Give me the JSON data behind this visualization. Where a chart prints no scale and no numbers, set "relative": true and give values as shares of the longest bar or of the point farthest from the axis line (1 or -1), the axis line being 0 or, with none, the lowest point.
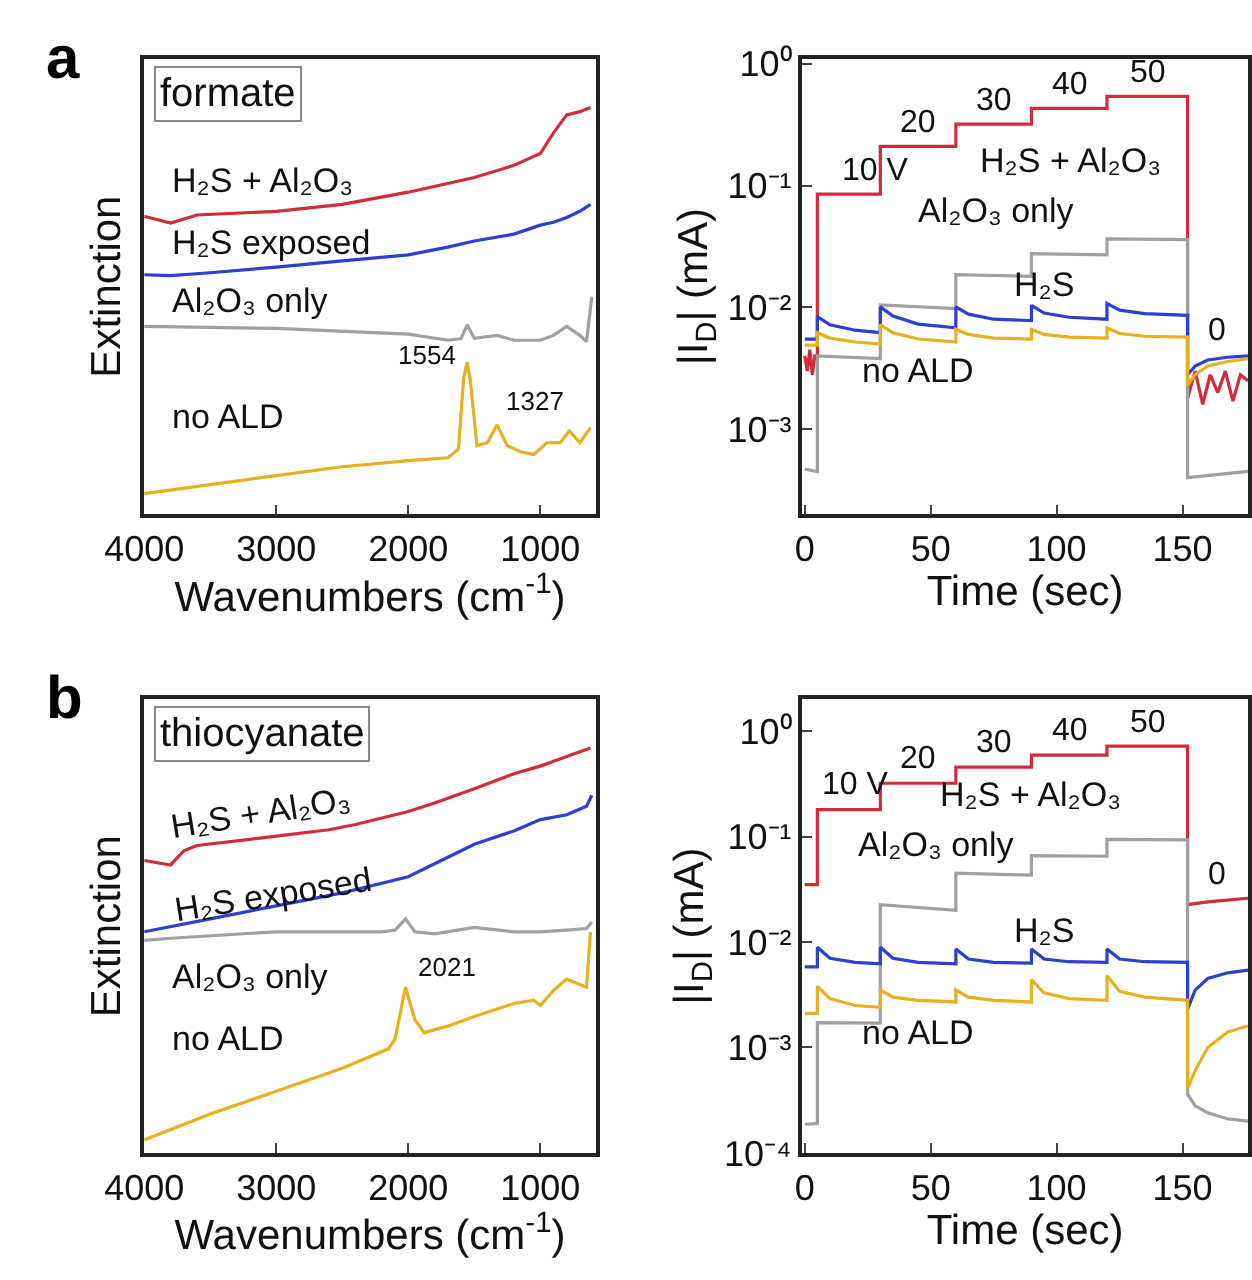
{
  "chart_data": [
    {
      "type": "line",
      "title": "formate",
      "relative": true,
      "xlabel": "Wavenumbers (cm$^{-1}$)",
      "ylabel": "Extinction",
      "xlim": [
        4000,
        580
      ],
      "xticks": [
        4000,
        3000,
        2000,
        1000
      ],
      "tick_labels": "x",
      "legend": false,
      "x": [
        4000,
        3800,
        3600,
        3000,
        2500,
        2000,
        1500,
        1200,
        1000,
        900,
        800,
        700,
        620
      ],
      "series": [
        {
          "name": "H₂S + Al₂O₃",
          "color": "#d42a3a",
          "values": [
            0.733,
            0.716,
            0.736,
            0.745,
            0.762,
            0.792,
            0.828,
            0.858,
            0.887,
            0.938,
            0.982,
            0.99,
            1.0
          ]
        },
        {
          "name": "H₂S exposed",
          "color": "#2a3fd6",
          "x": [
            4000,
            3800,
            3500,
            3000,
            2500,
            2000,
            1700,
            1500,
            1200,
            1000,
            900,
            800,
            700,
            620
          ],
          "values": [
            0.589,
            0.587,
            0.594,
            0.608,
            0.623,
            0.638,
            0.657,
            0.672,
            0.689,
            0.711,
            0.718,
            0.73,
            0.745,
            0.762
          ]
        },
        {
          "name": "Al₂O₃ only",
          "color": "#a0a0a0",
          "x": [
            4000,
            3000,
            2000,
            1700,
            1600,
            1554,
            1500,
            1327,
            1200,
            1000,
            900,
            800,
            700,
            650,
            610
          ],
          "values": [
            0.462,
            0.457,
            0.443,
            0.428,
            0.432,
            0.466,
            0.433,
            0.44,
            0.428,
            0.428,
            0.44,
            0.462,
            0.44,
            0.425,
            0.535
          ]
        },
        {
          "name": "no ALD",
          "color": "#e8b020",
          "x": [
            4000,
            3500,
            3000,
            2500,
            2000,
            1700,
            1620,
            1580,
            1554,
            1530,
            1480,
            1400,
            1327,
            1250,
            1150,
            1050,
            950,
            850,
            780,
            700,
            620
          ],
          "values": [
            0.051,
            0.073,
            0.095,
            0.117,
            0.132,
            0.139,
            0.161,
            0.337,
            0.374,
            0.33,
            0.169,
            0.176,
            0.22,
            0.169,
            0.154,
            0.147,
            0.176,
            0.176,
            0.205,
            0.176,
            0.213
          ]
        }
      ],
      "annotations": [
        "a",
        {
          "text": "1554",
          "x": 1554,
          "y": 0.374
        },
        {
          "text": "1327",
          "x": 1327,
          "y": 0.22
        }
      ]
    },
    {
      "type": "line",
      "xlabel": "Time (sec)",
      "ylabel": "|I$_{D}$| (mA)",
      "log": "y",
      "xlim": [
        -1,
        176
      ],
      "xticks": [
        0,
        50,
        100,
        150
      ],
      "ylim": [
        0.0002,
        1.1
      ],
      "yticks": [
        {
          "value": 1,
          "label": "10⁰"
        },
        {
          "value": 0.1,
          "label": "10⁻¹"
        },
        {
          "value": 0.01,
          "label": "10⁻²"
        },
        {
          "value": 0.001,
          "label": "10⁻³"
        }
      ],
      "legend": false,
      "series": [
        {
          "name": "H₂S + Al₂O₃",
          "color": "#d42a3a",
          "x": [
            0,
            1,
            2,
            3,
            4,
            5,
            5,
            30,
            30,
            60,
            60,
            90,
            90,
            120,
            120,
            152,
            152,
            155,
            158,
            161,
            164,
            167,
            170,
            173,
            176
          ],
          "values": [
            0.004,
            0.003,
            0.0045,
            0.0028,
            0.004,
            0.004,
            0.085,
            0.085,
            0.21,
            0.21,
            0.32,
            0.32,
            0.43,
            0.43,
            0.54,
            0.54,
            0.0018,
            0.003,
            0.0016,
            0.0028,
            0.002,
            0.003,
            0.0017,
            0.0028,
            0.0025
          ]
        },
        {
          "name": "Al₂O₃ only",
          "color": "#a0a0a0",
          "x": [
            0,
            5,
            5,
            30,
            30,
            60,
            60,
            90,
            90,
            120,
            120,
            152,
            152,
            176
          ],
          "values": [
            0.00047,
            0.00045,
            0.004,
            0.0038,
            0.0105,
            0.0098,
            0.0186,
            0.018,
            0.0276,
            0.027,
            0.0366,
            0.036,
            0.0004,
            0.00045
          ]
        },
        {
          "name": "H₂S",
          "color": "#2a3fd6",
          "x": [
            0,
            5,
            5,
            10,
            20,
            30,
            30,
            35,
            45,
            60,
            60,
            65,
            75,
            90,
            90,
            95,
            105,
            120,
            120,
            125,
            135,
            152,
            152,
            155,
            160,
            168,
            176
          ],
          "values": [
            0.0055,
            0.0055,
            0.0084,
            0.0072,
            0.0065,
            0.0062,
            0.0101,
            0.0085,
            0.0073,
            0.0068,
            0.0101,
            0.0088,
            0.008,
            0.0078,
            0.0104,
            0.009,
            0.0083,
            0.008,
            0.0108,
            0.0095,
            0.0089,
            0.0086,
            0.0028,
            0.0033,
            0.0037,
            0.0039,
            0.004
          ]
        },
        {
          "name": "no ALD",
          "color": "#e8b020",
          "x": [
            0,
            5,
            5,
            10,
            20,
            30,
            30,
            35,
            45,
            60,
            60,
            65,
            75,
            90,
            90,
            95,
            105,
            120,
            120,
            125,
            135,
            152,
            152,
            155,
            160,
            168,
            176
          ],
          "values": [
            0.0049,
            0.0049,
            0.0062,
            0.0056,
            0.0052,
            0.005,
            0.0072,
            0.0062,
            0.0055,
            0.0052,
            0.0066,
            0.006,
            0.0056,
            0.0055,
            0.0066,
            0.006,
            0.0057,
            0.0056,
            0.0068,
            0.0061,
            0.0058,
            0.0057,
            0.0023,
            0.0028,
            0.0033,
            0.0036,
            0.0038
          ]
        }
      ],
      "annotations": [
        {
          "text": "10 V",
          "x": 17,
          "y": 0.085
        },
        {
          "text": "20",
          "x": 45,
          "y": 0.21
        },
        {
          "text": "30",
          "x": 75,
          "y": 0.32
        },
        {
          "text": "40",
          "x": 105,
          "y": 0.43
        },
        {
          "text": "50",
          "x": 136,
          "y": 0.54
        },
        {
          "text": "0",
          "x": 164,
          "y": 0.004
        }
      ]
    },
    {
      "type": "line",
      "title": "thiocyanate",
      "relative": true,
      "xlabel": "Wavenumbers (cm$^{-1}$)",
      "ylabel": "Extinction",
      "xlim": [
        4000,
        580
      ],
      "xticks": [
        4000,
        3000,
        2000,
        1000
      ],
      "tick_labels": "x",
      "legend": false,
      "series": [
        {
          "name": "H₂S + Al₂O₃",
          "color": "#d42a3a",
          "x": [
            4000,
            3800,
            3700,
            3600,
            3000,
            2600,
            2400,
            2000,
            1800,
            1500,
            1200,
            1000,
            800,
            620
          ],
          "values": [
            0.722,
            0.711,
            0.746,
            0.759,
            0.782,
            0.798,
            0.811,
            0.843,
            0.864,
            0.899,
            0.936,
            0.955,
            0.979,
            1.0
          ]
        },
        {
          "name": "H₂S exposed",
          "color": "#2a3fd6",
          "x": [
            4000,
            3500,
            3000,
            2500,
            2000,
            1700,
            1500,
            1200,
            1000,
            800,
            650,
            610
          ],
          "values": [
            0.546,
            0.578,
            0.61,
            0.642,
            0.682,
            0.73,
            0.762,
            0.795,
            0.823,
            0.835,
            0.856,
            0.883
          ]
        },
        {
          "name": "Al₂O₃ only",
          "color": "#a0a0a0",
          "x": [
            4000,
            3800,
            3000,
            2200,
            2100,
            2021,
            1950,
            1800,
            1500,
            1200,
            1000,
            800,
            650,
            610
          ],
          "values": [
            0.525,
            0.53,
            0.546,
            0.546,
            0.55,
            0.578,
            0.546,
            0.541,
            0.557,
            0.546,
            0.546,
            0.55,
            0.554,
            0.57
          ]
        },
        {
          "name": "no ALD",
          "color": "#e8b020",
          "x": [
            4000,
            3500,
            3000,
            2500,
            2150,
            2100,
            2021,
            1950,
            1880,
            1700,
            1500,
            1200,
            1050,
            1000,
            900,
            800,
            650,
            620
          ],
          "values": [
            0.032,
            0.096,
            0.152,
            0.209,
            0.257,
            0.281,
            0.409,
            0.329,
            0.297,
            0.313,
            0.337,
            0.369,
            0.377,
            0.364,
            0.401,
            0.429,
            0.409,
            0.546
          ]
        }
      ],
      "annotations": [
        "b",
        {
          "text": "2021",
          "x": 2021,
          "y": 0.409
        }
      ]
    },
    {
      "type": "line",
      "xlabel": "Time (sec)",
      "ylabel": "|I$_{D}$| (mA)",
      "log": "y",
      "xlim": [
        -1,
        176
      ],
      "xticks": [
        0,
        50,
        100,
        150
      ],
      "ylim": [
        0.0001,
        2
      ],
      "yticks": [
        {
          "value": 1,
          "label": "10⁰"
        },
        {
          "value": 0.1,
          "label": "10⁻¹"
        },
        {
          "value": 0.01,
          "label": "10⁻²"
        },
        {
          "value": 0.001,
          "label": "10⁻³"
        },
        {
          "value": 0.0001,
          "label": "10⁻⁴"
        }
      ],
      "legend": false,
      "series": [
        {
          "name": "H₂S + Al₂O₃",
          "color": "#d42a3a",
          "x": [
            0,
            5,
            5,
            30,
            30,
            60,
            60,
            90,
            90,
            120,
            120,
            152,
            152,
            160,
            176
          ],
          "values": [
            0.035,
            0.035,
            0.18,
            0.18,
            0.32,
            0.32,
            0.455,
            0.455,
            0.59,
            0.59,
            0.72,
            0.72,
            0.0226,
            0.024,
            0.026
          ]
        },
        {
          "name": "Al₂O₃ only",
          "color": "#a0a0a0",
          "x": [
            0,
            5,
            5,
            30,
            30,
            60,
            60,
            90,
            90,
            120,
            120,
            152,
            152,
            155,
            160,
            168,
            176
          ],
          "values": [
            0.000187,
            0.00019,
            0.00172,
            0.0017,
            0.0226,
            0.02,
            0.045,
            0.043,
            0.066,
            0.065,
            0.094,
            0.093,
            0.00036,
            0.00028,
            0.00024,
            0.00021,
            0.0002
          ]
        },
        {
          "name": "H₂S",
          "color": "#2a3fd6",
          "x": [
            0,
            5,
            5,
            10,
            20,
            30,
            30,
            35,
            45,
            60,
            60,
            65,
            75,
            90,
            90,
            95,
            105,
            120,
            120,
            125,
            135,
            152,
            152,
            155,
            160,
            168,
            176
          ],
          "values": [
            0.0058,
            0.0058,
            0.0089,
            0.007,
            0.0064,
            0.0062,
            0.0089,
            0.007,
            0.0064,
            0.0062,
            0.0086,
            0.0069,
            0.0064,
            0.0063,
            0.0086,
            0.0069,
            0.0065,
            0.0064,
            0.0086,
            0.0069,
            0.0065,
            0.0064,
            0.0023,
            0.0035,
            0.0045,
            0.0051,
            0.0054
          ]
        },
        {
          "name": "no ALD",
          "color": "#e8b020",
          "x": [
            0,
            5,
            5,
            10,
            20,
            30,
            30,
            35,
            45,
            60,
            60,
            65,
            75,
            90,
            90,
            95,
            105,
            120,
            120,
            125,
            135,
            152,
            152,
            155,
            160,
            168,
            176
          ],
          "values": [
            0.0021,
            0.0021,
            0.0038,
            0.0029,
            0.0025,
            0.0024,
            0.0035,
            0.003,
            0.0028,
            0.0027,
            0.0035,
            0.003,
            0.0028,
            0.0027,
            0.0044,
            0.0033,
            0.0029,
            0.0028,
            0.0048,
            0.0034,
            0.003,
            0.0028,
            0.00041,
            0.0006,
            0.001,
            0.0014,
            0.0016
          ]
        }
      ],
      "annotations": [
        {
          "text": "10 V",
          "x": 17,
          "y": 0.18
        },
        {
          "text": "20",
          "x": 45,
          "y": 0.32
        },
        {
          "text": "30",
          "x": 75,
          "y": 0.455
        },
        {
          "text": "40",
          "x": 105,
          "y": 0.59
        },
        {
          "text": "50",
          "x": 136,
          "y": 0.72
        },
        {
          "text": "0",
          "x": 164,
          "y": 0.026
        }
      ]
    }
  ]
}
